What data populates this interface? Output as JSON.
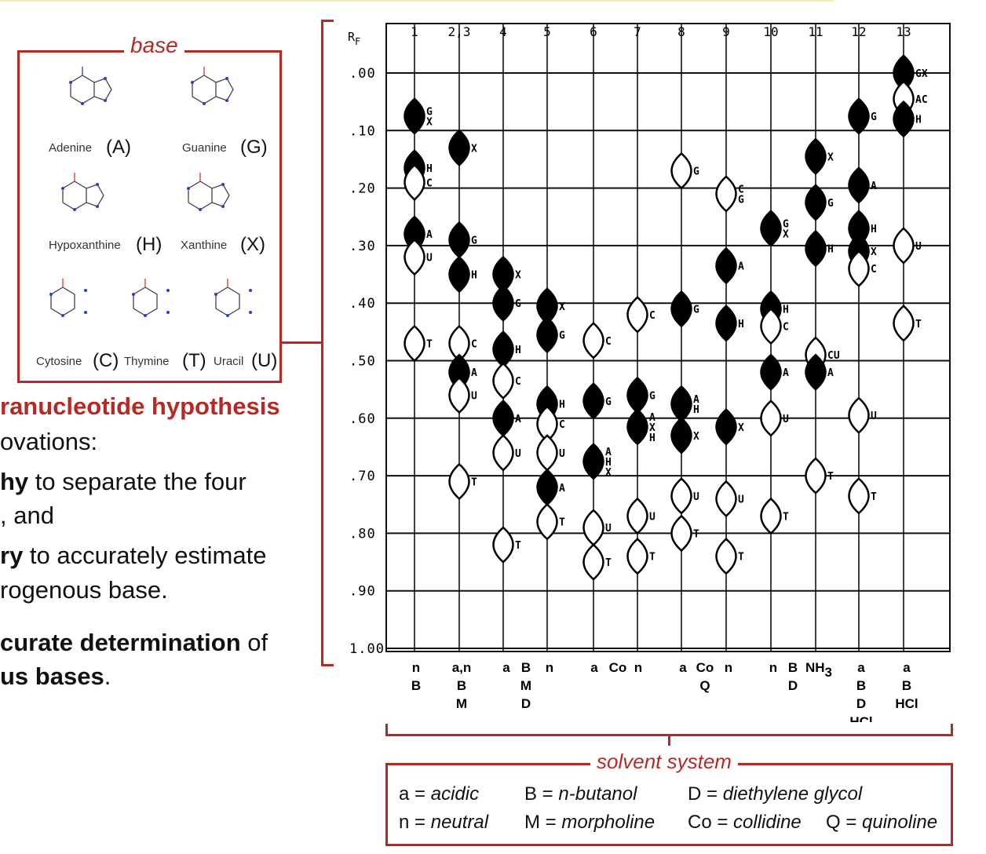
{
  "base_panel": {
    "title": "base",
    "molecules": [
      {
        "name": "Adenine",
        "letter": "(A)",
        "class": "purine"
      },
      {
        "name": "Guanine",
        "letter": "(G)",
        "class": "purine"
      },
      {
        "name": "Hypoxanthine",
        "letter": "(H)",
        "class": "purine"
      },
      {
        "name": "Xanthine",
        "letter": "(X)",
        "class": "purine"
      },
      {
        "name": "Cytosine",
        "letter": "(C)",
        "class": "pyrimidine"
      },
      {
        "name": "Thymine",
        "letter": "(T)",
        "class": "pyrimidine"
      },
      {
        "name": "Uracil",
        "letter": "(U)",
        "class": "pyrimidine"
      }
    ]
  },
  "left_text": {
    "heading": "ranucleotide hypothesis",
    "line1": "ovations:",
    "line2_bold": "hy",
    "line2_rest": " to separate the four",
    "line3": ", and",
    "line4_bold": "ry",
    "line4_rest": " to accurately estimate",
    "line5": "rogenous base.",
    "line6_bold": "curate determination",
    "line6_rest": " of",
    "line7_bold": "us bases",
    "line7_rest": "."
  },
  "chart_data": {
    "type": "scatter",
    "description_label": "R",
    "ylabel": "RF",
    "ylabel_main": "R",
    "ylabel_sub": "F",
    "yticks": [
      ".00",
      ".10",
      ".20",
      ".30",
      ".40",
      ".50",
      ".60",
      ".70",
      ".80",
      ".90",
      "1.00"
    ],
    "ylim": [
      0,
      1
    ],
    "grid": true,
    "columns": [
      {
        "label": "1",
        "spots": [
          [
            0.075,
            "G\nX",
            1
          ],
          [
            0.165,
            "H",
            1
          ],
          [
            0.19,
            "C",
            0
          ],
          [
            0.28,
            "A",
            1
          ],
          [
            0.32,
            "U",
            0
          ],
          [
            0.47,
            "T",
            0
          ]
        ]
      },
      {
        "label": "2,3",
        "spots": [
          [
            0.13,
            "X",
            1
          ],
          [
            0.29,
            "G",
            1
          ],
          [
            0.35,
            "H",
            1
          ],
          [
            0.47,
            "C",
            0
          ],
          [
            0.52,
            "A",
            1
          ],
          [
            0.56,
            "U",
            0
          ],
          [
            0.71,
            "T",
            0
          ]
        ]
      },
      {
        "label": "4",
        "spots": [
          [
            0.35,
            "X",
            1
          ],
          [
            0.4,
            "G",
            1
          ],
          [
            0.48,
            "H",
            1
          ],
          [
            0.535,
            "C",
            0
          ],
          [
            0.6,
            "A",
            1
          ],
          [
            0.66,
            "U",
            0
          ],
          [
            0.82,
            "T",
            0
          ]
        ]
      },
      {
        "label": "5",
        "spots": [
          [
            0.405,
            "X",
            1
          ],
          [
            0.455,
            "G",
            1
          ],
          [
            0.575,
            "H",
            1
          ],
          [
            0.61,
            "C",
            0
          ],
          [
            0.66,
            "U",
            0
          ],
          [
            0.72,
            "A",
            1
          ],
          [
            0.78,
            "T",
            0
          ]
        ]
      },
      {
        "label": "6",
        "spots": [
          [
            0.465,
            "C",
            0
          ],
          [
            0.57,
            "G",
            1
          ],
          [
            0.675,
            "A\nH\nX",
            1
          ],
          [
            0.79,
            "U",
            0
          ],
          [
            0.85,
            "T",
            0
          ]
        ]
      },
      {
        "label": "7",
        "spots": [
          [
            0.42,
            "C",
            0
          ],
          [
            0.56,
            "G",
            1
          ],
          [
            0.615,
            "A\nX\nH",
            1
          ],
          [
            0.77,
            "U",
            0
          ],
          [
            0.84,
            "T",
            0
          ]
        ]
      },
      {
        "label": "8",
        "spots": [
          [
            0.17,
            "G",
            0
          ],
          [
            0.41,
            "G",
            1
          ],
          [
            0.575,
            "A\nH",
            1
          ],
          [
            0.63,
            "X",
            1
          ],
          [
            0.735,
            "U",
            0
          ],
          [
            0.8,
            "T",
            0
          ]
        ]
      },
      {
        "label": "9",
        "spots": [
          [
            0.21,
            "C\nG",
            0
          ],
          [
            0.335,
            "A",
            1
          ],
          [
            0.435,
            "H",
            1
          ],
          [
            0.615,
            "X",
            1
          ],
          [
            0.74,
            "U",
            0
          ],
          [
            0.84,
            "T",
            0
          ]
        ]
      },
      {
        "label": "10",
        "spots": [
          [
            0.27,
            "G\nX",
            1
          ],
          [
            0.41,
            "H",
            1
          ],
          [
            0.44,
            "C",
            0
          ],
          [
            0.52,
            "A",
            1
          ],
          [
            0.6,
            "U",
            0
          ],
          [
            0.77,
            "T",
            0
          ]
        ]
      },
      {
        "label": "11",
        "spots": [
          [
            0.145,
            "X",
            1
          ],
          [
            0.225,
            "G",
            1
          ],
          [
            0.305,
            "H",
            1
          ],
          [
            0.49,
            "CU",
            0
          ],
          [
            0.52,
            "A",
            1
          ],
          [
            0.7,
            "T",
            0
          ]
        ]
      },
      {
        "label": "12",
        "spots": [
          [
            0.075,
            "G",
            1
          ],
          [
            0.195,
            "A",
            1
          ],
          [
            0.27,
            "H",
            1
          ],
          [
            0.31,
            "X",
            1
          ],
          [
            0.34,
            "C",
            0
          ],
          [
            0.595,
            "U",
            0
          ],
          [
            0.735,
            "T",
            0
          ]
        ]
      },
      {
        "label": "13",
        "spots": [
          [
            0.0,
            "GX",
            1
          ],
          [
            0.045,
            "AC",
            0
          ],
          [
            0.08,
            "H",
            1
          ],
          [
            0.3,
            "U",
            0
          ],
          [
            0.435,
            "T",
            0
          ]
        ]
      }
    ],
    "solvent_labels": [
      [
        "n",
        "B"
      ],
      [
        "a,n",
        "B",
        "M"
      ],
      [
        "a"
      ],
      [
        "B",
        "M",
        "D"
      ],
      [
        "n"
      ],
      [
        "a"
      ],
      [
        "Co"
      ],
      [
        "n"
      ],
      [
        "a"
      ],
      [
        "Co",
        "Q"
      ],
      [
        "n"
      ],
      [
        "n"
      ],
      [
        "B",
        "D"
      ],
      [
        "NH3"
      ],
      [
        "a",
        "B",
        "D",
        "HCl"
      ],
      [
        "a",
        "B",
        "HCl"
      ]
    ]
  },
  "solvent_panel": {
    "title": "solvent system",
    "legend": [
      {
        "key": "a",
        "value": "acidic"
      },
      {
        "key": "B",
        "value": "n-butanol"
      },
      {
        "key": "D",
        "value": "diethylene glycol"
      },
      {
        "key": "n",
        "value": "neutral"
      },
      {
        "key": "M",
        "value": "morpholine"
      },
      {
        "key": "Co",
        "value": "collidine"
      },
      {
        "key": "Q",
        "value": "quinoline"
      }
    ]
  },
  "colors": {
    "accent": "#b52a24",
    "molecule": "#2a3fd0",
    "ink": "#111111"
  }
}
